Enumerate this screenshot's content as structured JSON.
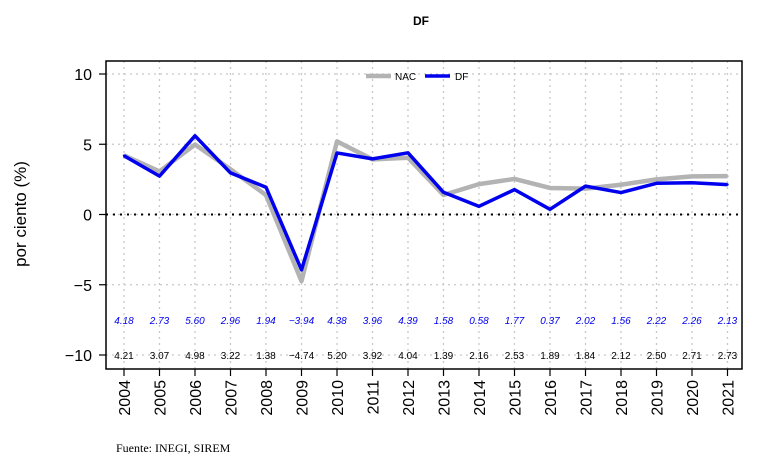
{
  "chart_data": {
    "type": "line",
    "title": "DF",
    "ylabel": "por ciento (%)",
    "xlabel": "",
    "ylim": [
      -10,
      10
    ],
    "yticks": [
      -10,
      -5,
      0,
      5,
      10
    ],
    "x": [
      "2004",
      "2005",
      "2006",
      "2007",
      "2008",
      "2009",
      "2010",
      "2011",
      "2012",
      "2013",
      "2014",
      "2015",
      "2016",
      "2017",
      "2018",
      "2019",
      "2020",
      "2021"
    ],
    "series": [
      {
        "name": "NAC",
        "color": "#b3b3b3",
        "values": [
          4.21,
          3.07,
          4.98,
          3.22,
          1.38,
          -4.74,
          5.2,
          3.92,
          4.04,
          1.39,
          2.16,
          2.53,
          1.89,
          1.84,
          2.12,
          2.5,
          2.71,
          2.73
        ],
        "labels": [
          "4.21",
          "3.07",
          "4.98",
          "3.22",
          "1.38",
          "−4.74",
          "5.20",
          "3.92",
          "4.04",
          "1.39",
          "2.16",
          "2.53",
          "1.89",
          "1.84",
          "2.12",
          "2.50",
          "2.71",
          "2.73"
        ],
        "label_color": "#000000"
      },
      {
        "name": "DF",
        "color": "#0000ee",
        "values": [
          4.18,
          2.73,
          5.6,
          2.96,
          1.94,
          -3.94,
          4.38,
          3.96,
          4.39,
          1.58,
          0.58,
          1.77,
          0.37,
          2.02,
          1.56,
          2.22,
          2.26,
          2.13
        ],
        "labels": [
          "4.18",
          "2.73",
          "5.60",
          "2.96",
          "1.94",
          "−3.94",
          "4.38",
          "3.96",
          "4.39",
          "1.58",
          "0.58",
          "1.77",
          "0.37",
          "2.02",
          "1.56",
          "2.22",
          "2.26",
          "2.13"
        ],
        "label_color": "#0000ee"
      }
    ],
    "label_rows_y": {
      "DF": -7.5,
      "NAC": -10
    },
    "grid": true,
    "zero_line": true,
    "legend_position": "top-center",
    "source": "Fuente:  INEGI, SIREM"
  }
}
